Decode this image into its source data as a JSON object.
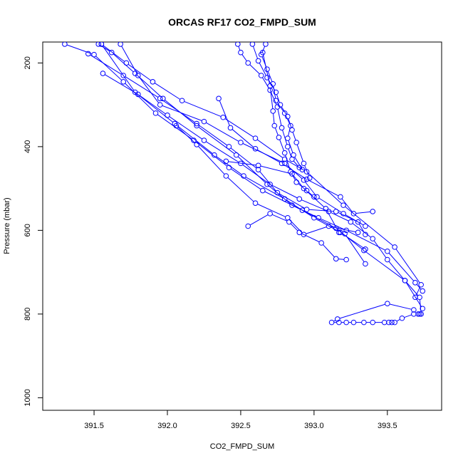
{
  "chart_data": {
    "type": "line",
    "title": "ORCAS RF17 CO2_FMPD_SUM",
    "xlabel": "CO2_FMPD_SUM",
    "ylabel": "Pressure (mbar)",
    "xlim": [
      391.15,
      393.87
    ],
    "ylim": [
      1030,
      150
    ],
    "y_reversed": true,
    "grid": false,
    "markers": "open-circle",
    "line_color": "#0000ff",
    "xticks": [
      391.5,
      392.0,
      392.5,
      393.0,
      393.5
    ],
    "xtick_labels": [
      "391.5",
      "392.0",
      "392.5",
      "393.0",
      "393.5"
    ],
    "yticks": [
      200,
      400,
      600,
      800,
      1000
    ],
    "ytick_labels": [
      "200",
      "400",
      "600",
      "800",
      "1000"
    ],
    "series": [
      {
        "x": [
          391.68,
          391.8,
          391.95,
          392.25,
          392.5,
          392.8,
          392.93,
          393.02,
          393.2,
          393.35
        ],
        "y": [
          155,
          230,
          300,
          340,
          390,
          440,
          480,
          520,
          560,
          590
        ]
      },
      {
        "x": [
          391.55,
          391.72,
          391.9,
          392.1,
          392.38,
          392.6,
          392.8,
          392.95,
          393.2,
          393.55,
          393.73,
          393.69
        ],
        "y": [
          155,
          200,
          245,
          290,
          330,
          380,
          430,
          460,
          540,
          640,
          730,
          760
        ]
      },
      {
        "x": [
          391.53,
          391.62,
          391.78,
          391.97,
          392.2,
          392.47,
          392.68,
          392.85,
          393.03,
          393.22,
          393.5,
          393.69,
          393.74
        ],
        "y": [
          155,
          175,
          225,
          285,
          350,
          420,
          490,
          540,
          570,
          600,
          650,
          725,
          745
        ]
      },
      {
        "x": [
          391.3,
          391.5,
          391.7,
          391.92,
          392.18,
          392.42,
          392.65,
          392.92,
          393.15,
          393.34,
          393.62,
          393.74
        ],
        "y": [
          155,
          180,
          245,
          320,
          385,
          450,
          505,
          552,
          595,
          648,
          720,
          787
        ]
      },
      {
        "x": [
          391.56,
          391.8,
          392.0,
          392.25,
          392.5,
          392.7,
          392.9,
          393.1,
          393.25,
          393.4,
          393.5,
          393.62,
          393.72,
          393.73
        ],
        "y": [
          225,
          275,
          325,
          385,
          440,
          490,
          525,
          555,
          580,
          620,
          670,
          720,
          760,
          800
        ]
      },
      {
        "x": [
          391.46,
          391.7,
          391.95,
          392.2,
          392.42,
          392.62,
          392.75,
          392.95,
          393.15,
          393.3,
          393.35
        ],
        "y": [
          178,
          230,
          285,
          345,
          400,
          455,
          510,
          550,
          555,
          580,
          610
        ]
      },
      {
        "x": [
          391.55,
          391.78,
          392.05,
          392.32,
          392.52,
          392.8,
          393.0,
          393.18,
          393.35
        ],
        "y": [
          155,
          270,
          345,
          420,
          470,
          525,
          570,
          605,
          645
        ]
      },
      {
        "x": [
          392.55,
          392.7,
          392.83,
          392.9,
          393.05,
          393.15,
          393.22
        ],
        "y": [
          590,
          560,
          580,
          605,
          630,
          668,
          670
        ]
      },
      {
        "x": [
          392.4,
          392.62,
          392.85,
          392.93,
          393.08,
          393.17,
          393.21,
          393.35
        ],
        "y": [
          435,
          445,
          465,
          500,
          548,
          605,
          608,
          680
        ]
      },
      {
        "x": [
          392.06,
          392.2,
          392.4,
          392.6,
          392.82,
          392.93,
          393.1,
          393.3
        ],
        "y": [
          350,
          395,
          470,
          535,
          570,
          610,
          590,
          605
        ]
      },
      {
        "x": [
          392.35,
          392.43,
          392.6,
          392.78,
          392.95,
          393.18,
          393.27,
          393.4
        ],
        "y": [
          285,
          355,
          405,
          440,
          478,
          520,
          560,
          555
        ]
      },
      {
        "x": [
          392.48,
          392.5,
          392.55,
          392.64,
          392.7,
          392.75,
          392.78,
          392.82,
          392.85,
          392.9
        ],
        "y": [
          155,
          175,
          200,
          230,
          265,
          305,
          355,
          400,
          430,
          450
        ]
      },
      {
        "x": [
          392.67,
          392.64,
          392.68,
          392.72,
          392.74,
          392.8,
          392.84,
          392.82,
          392.86,
          392.92
        ],
        "y": [
          155,
          180,
          215,
          250,
          290,
          320,
          350,
          380,
          420,
          455
        ]
      },
      {
        "x": [
          392.58,
          392.62,
          392.68,
          392.74,
          392.77,
          392.82,
          392.85,
          392.88,
          392.93,
          392.97
        ],
        "y": [
          155,
          195,
          235,
          270,
          300,
          328,
          360,
          390,
          440,
          475
        ]
      },
      {
        "x": [
          392.65,
          392.7,
          392.72,
          392.73,
          392.76,
          392.8,
          392.84,
          392.88,
          392.95,
          393.0
        ],
        "y": [
          175,
          255,
          315,
          350,
          378,
          415,
          460,
          485,
          505,
          520
        ]
      },
      {
        "x": [
          393.72,
          393.71,
          393.68,
          393.6,
          393.55,
          393.53,
          393.51,
          393.48,
          393.4,
          393.34,
          393.27,
          393.22,
          393.17,
          393.12,
          393.16,
          393.5,
          393.68
        ],
        "y": [
          800,
          800,
          800,
          810,
          820,
          820,
          820,
          820,
          820,
          820,
          820,
          820,
          820,
          820,
          812,
          775,
          790
        ]
      }
    ]
  }
}
